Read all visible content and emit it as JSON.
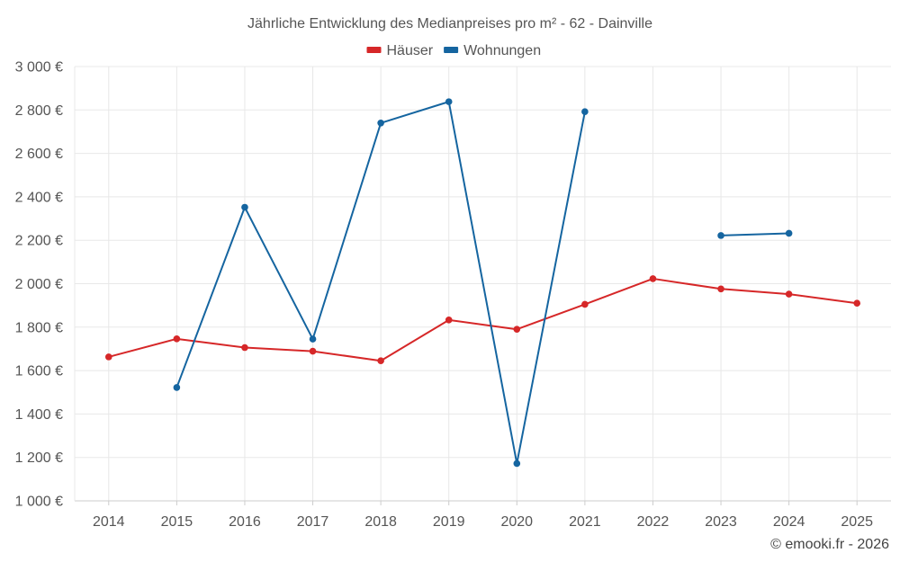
{
  "chart_data": {
    "type": "line",
    "title": "Jährliche Entwicklung des Medianpreises pro m² - 62 - Dainville",
    "categories": [
      "2014",
      "2015",
      "2016",
      "2017",
      "2018",
      "2019",
      "2020",
      "2021",
      "2022",
      "2023",
      "2024",
      "2025"
    ],
    "ylim": [
      1000,
      3000
    ],
    "y_ticks": [
      1000,
      1200,
      1400,
      1600,
      1800,
      2000,
      2200,
      2400,
      2600,
      2800,
      3000
    ],
    "y_tick_labels": [
      "1 000 €",
      "1 200 €",
      "1 400 €",
      "1 600 €",
      "1 800 €",
      "2 000 €",
      "2 200 €",
      "2 400 €",
      "2 600 €",
      "2 800 €",
      "3 000 €"
    ],
    "series": [
      {
        "name": "Häuser",
        "color": "#d62728",
        "values": [
          1663,
          1746,
          1706,
          1689,
          1645,
          1833,
          1790,
          1905,
          2023,
          1976,
          1952,
          1910
        ]
      },
      {
        "name": "Wohnungen",
        "color": "#1565a0",
        "values": [
          null,
          1522,
          2352,
          1745,
          2740,
          2838,
          1172,
          2792,
          null,
          2222,
          2232,
          null
        ]
      }
    ],
    "legend_position": "top-center",
    "grid": true
  },
  "credit": "© emooki.fr - 2026"
}
